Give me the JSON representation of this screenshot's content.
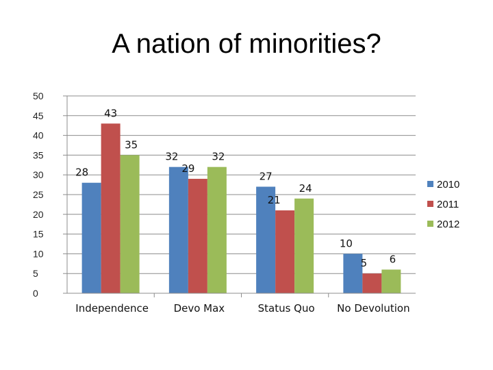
{
  "chart_data": {
    "type": "bar",
    "title": "A nation of minorities?",
    "xlabel": "",
    "ylabel": "",
    "categories": [
      "Independence",
      "Devo Max",
      "Status Quo",
      "No Devolution"
    ],
    "series": [
      {
        "name": "2010",
        "values": [
          28,
          32,
          27,
          10
        ],
        "color": "#4f81bd"
      },
      {
        "name": "2011",
        "values": [
          43,
          29,
          21,
          5
        ],
        "color": "#c0504d"
      },
      {
        "name": "2012",
        "values": [
          35,
          32,
          24,
          6
        ],
        "color": "#9bbb59"
      }
    ],
    "ylim": [
      0,
      50
    ],
    "yticks": [
      "0",
      "5",
      "10",
      "15",
      "20",
      "25",
      "30",
      "35",
      "40",
      "45",
      "50"
    ],
    "grid": true,
    "legend_position": "right"
  }
}
